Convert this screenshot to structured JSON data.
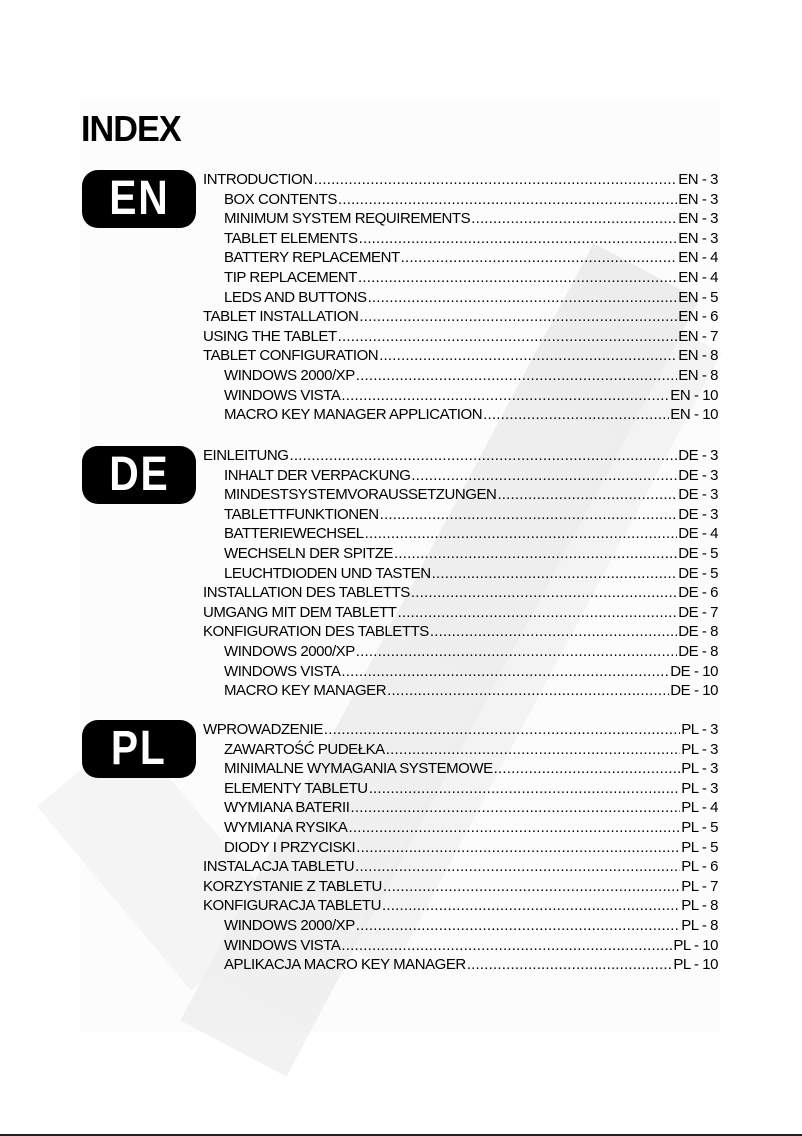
{
  "title": "INDEX",
  "sections": [
    {
      "badge": "EN",
      "entries": [
        {
          "title": "INTRODUCTION",
          "page": "EN - 3",
          "level": 0
        },
        {
          "title": "BOX CONTENTS",
          "page": "EN - 3",
          "level": 1
        },
        {
          "title": "MINIMUM SYSTEM REQUIREMENTS",
          "page": "EN - 3",
          "level": 1
        },
        {
          "title": "TABLET ELEMENTS",
          "page": "EN - 3",
          "level": 1
        },
        {
          "title": "BATTERY REPLACEMENT",
          "page": "EN - 4",
          "level": 1
        },
        {
          "title": "TIP REPLACEMENT",
          "page": "EN - 4",
          "level": 1
        },
        {
          "title": "LEDS AND BUTTONS",
          "page": "EN - 5",
          "level": 1
        },
        {
          "title": "TABLET INSTALLATION",
          "page": "EN - 6",
          "level": 0
        },
        {
          "title": "USING THE TABLET",
          "page": "EN - 7",
          "level": 0
        },
        {
          "title": "TABLET CONFIGURATION",
          "page": "EN - 8",
          "level": 0
        },
        {
          "title": "WINDOWS 2000/XP",
          "page": "EN - 8",
          "level": 1
        },
        {
          "title": "WINDOWS VISTA",
          "page": "EN - 10",
          "level": 1
        },
        {
          "title": "MACRO KEY MANAGER APPLICATION",
          "page": "EN - 10",
          "level": 1
        }
      ]
    },
    {
      "badge": "DE",
      "entries": [
        {
          "title": "EINLEITUNG",
          "page": "DE - 3",
          "level": 0
        },
        {
          "title": "INHALT DER VERPACKUNG",
          "page": "DE - 3",
          "level": 1
        },
        {
          "title": "MINDESTSYSTEMVORAUSSETZUNGEN",
          "page": "DE - 3",
          "level": 1
        },
        {
          "title": "TABLETTFUNKTIONEN",
          "page": "DE - 3",
          "level": 1
        },
        {
          "title": "BATTERIEWECHSEL",
          "page": "DE - 4",
          "level": 1
        },
        {
          "title": "WECHSELN DER SPITZE",
          "page": "DE - 5",
          "level": 1
        },
        {
          "title": "LEUCHTDIODEN UND TASTEN",
          "page": "DE - 5",
          "level": 1
        },
        {
          "title": "INSTALLATION DES TABLETTS",
          "page": "DE - 6",
          "level": 0
        },
        {
          "title": "UMGANG MIT DEM TABLETT",
          "page": "DE - 7",
          "level": 0
        },
        {
          "title": "KONFIGURATION DES TABLETTS",
          "page": "DE - 8",
          "level": 0
        },
        {
          "title": "WINDOWS 2000/XP",
          "page": "DE - 8",
          "level": 1
        },
        {
          "title": "WINDOWS VISTA",
          "page": "DE - 10",
          "level": 1
        },
        {
          "title": "MACRO KEY MANAGER",
          "page": "DE - 10",
          "level": 1
        }
      ]
    },
    {
      "badge": "PL",
      "entries": [
        {
          "title": "WPROWADZENIE",
          "page": "PL - 3",
          "level": 0
        },
        {
          "title": "ZAWARTOŚĆ PUDEŁKA",
          "page": "PL - 3",
          "level": 1
        },
        {
          "title": "MINIMALNE WYMAGANIA SYSTEMOWE",
          "page": "PL - 3",
          "level": 1
        },
        {
          "title": "ELEMENTY TABLETU",
          "page": "PL - 3",
          "level": 1
        },
        {
          "title": "WYMIANA BATERII",
          "page": "PL - 4",
          "level": 1
        },
        {
          "title": "WYMIANA RYSIKA",
          "page": "PL - 5",
          "level": 1
        },
        {
          "title": "DIODY I PRZYCISKI",
          "page": "PL - 5",
          "level": 1
        },
        {
          "title": "INSTALACJA TABLETU",
          "page": "PL - 6",
          "level": 0
        },
        {
          "title": "KORZYSTANIE Z TABLETU",
          "page": "PL - 7",
          "level": 0
        },
        {
          "title": "KONFIGURACJA TABLETU",
          "page": "PL - 8",
          "level": 0
        },
        {
          "title": "WINDOWS 2000/XP",
          "page": "PL - 8",
          "level": 1
        },
        {
          "title": "WINDOWS VISTA",
          "page": "PL - 10",
          "level": 1
        },
        {
          "title": "APLIKACJA MACRO KEY MANAGER",
          "page": "PL - 10",
          "level": 1
        }
      ]
    }
  ]
}
